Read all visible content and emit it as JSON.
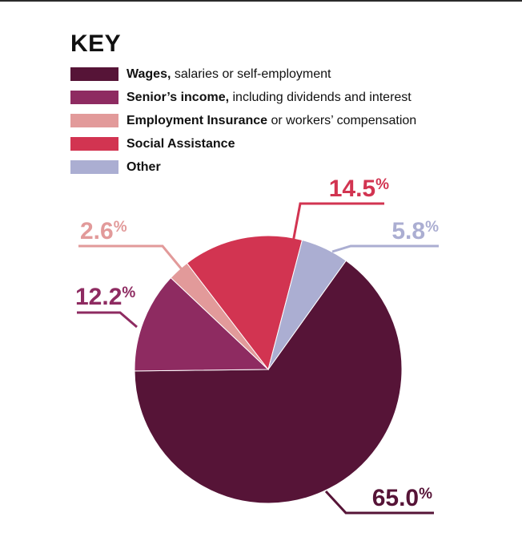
{
  "key_title": "KEY",
  "legend": [
    {
      "bold": "Wages,",
      "rest": " salaries or self-employment",
      "color": "#561437"
    },
    {
      "bold": "Senior’s income,",
      "rest": " including dividends and interest",
      "color": "#8e2b61"
    },
    {
      "bold": "Employment Insurance",
      "rest": " or workers’ compensation",
      "color": "#e29a9a"
    },
    {
      "bold": "Social Assistance",
      "rest": "",
      "color": "#d23451"
    },
    {
      "bold": "Other",
      "rest": "",
      "color": "#abaed2"
    }
  ],
  "chart_data": {
    "type": "pie",
    "title": "",
    "slices": [
      {
        "label": "Wages, salaries or self-employment",
        "value": 65.0,
        "display": "65.0%",
        "color": "#561437"
      },
      {
        "label": "Senior’s income, including dividends and interest",
        "value": 12.2,
        "display": "12.2%",
        "color": "#8e2b61"
      },
      {
        "label": "Employment Insurance or workers’ compensation",
        "value": 2.6,
        "display": "2.6%",
        "color": "#e29a9a"
      },
      {
        "label": "Social Assistance",
        "value": 14.5,
        "display": "14.5%",
        "color": "#d23451"
      },
      {
        "label": "Other",
        "value": 5.8,
        "display": "5.8%",
        "color": "#abaed2"
      }
    ],
    "legend_position": "top-left"
  }
}
